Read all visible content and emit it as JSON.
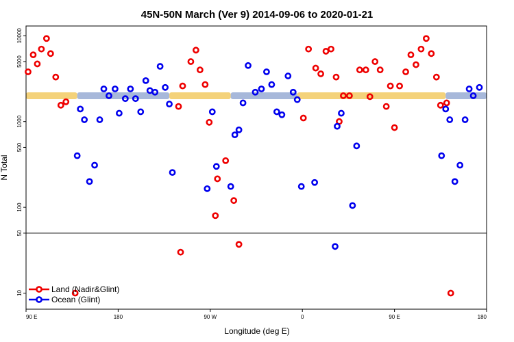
{
  "chart_data": {
    "type": "scatter",
    "title": "45N-50N March (Ver 9)   2014-09-06 to 2020-01-21",
    "xlabel": "Longitude (deg E)",
    "ylabel": "N Total",
    "x_ticks": [
      {
        "value": 90,
        "label": "90 E"
      },
      {
        "value": 180,
        "label": "180"
      },
      {
        "value": 270,
        "label": "90 W"
      },
      {
        "value": 360,
        "label": "0"
      },
      {
        "value": 450,
        "label": "90 E"
      },
      {
        "value": 540,
        "label": "180"
      }
    ],
    "y_ticks": [
      10,
      50,
      100,
      500,
      1000,
      5000,
      10000
    ],
    "xlim": [
      90,
      540
    ],
    "ylim": [
      6.5,
      13000
    ],
    "y_scale": "log",
    "reference_line_y": 50,
    "grid": false,
    "legend_position": "bottom-left",
    "series": [
      {
        "name": "Land (Nadir&Glint)",
        "color": "#ee0000",
        "points": [
          [
            92,
            3800
          ],
          [
            97,
            6000
          ],
          [
            101,
            4700
          ],
          [
            105,
            7000
          ],
          [
            110,
            9300
          ],
          [
            114,
            6200
          ],
          [
            119,
            3300
          ],
          [
            124,
            1550
          ],
          [
            129,
            1700
          ],
          [
            138,
            10
          ],
          [
            239,
            1500
          ],
          [
            241,
            30
          ],
          [
            243,
            2600
          ],
          [
            251,
            5000
          ],
          [
            256,
            6800
          ],
          [
            260,
            4000
          ],
          [
            265,
            2700
          ],
          [
            269,
            980
          ],
          [
            275,
            80
          ],
          [
            277,
            215
          ],
          [
            285,
            350
          ],
          [
            293,
            120
          ],
          [
            298,
            37
          ],
          [
            361,
            1100
          ],
          [
            366,
            7000
          ],
          [
            373,
            4200
          ],
          [
            378,
            3600
          ],
          [
            383,
            6600
          ],
          [
            388,
            7000
          ],
          [
            393,
            3300
          ],
          [
            396,
            1000
          ],
          [
            400,
            2000
          ],
          [
            406,
            2000
          ],
          [
            416,
            4000
          ],
          [
            422,
            4000
          ],
          [
            426,
            1950
          ],
          [
            431,
            5000
          ],
          [
            436,
            4000
          ],
          [
            442,
            1500
          ],
          [
            446,
            2600
          ],
          [
            450,
            850
          ],
          [
            455,
            2600
          ],
          [
            461,
            3800
          ],
          [
            466,
            6000
          ],
          [
            471,
            4600
          ],
          [
            476,
            7000
          ],
          [
            481,
            9300
          ],
          [
            486,
            6200
          ],
          [
            491,
            3300
          ],
          [
            495,
            1550
          ],
          [
            501,
            1650
          ],
          [
            505,
            10
          ]
        ]
      },
      {
        "name": "Ocean (Glint)",
        "color": "#0000ee",
        "points": [
          [
            140,
            400
          ],
          [
            143,
            1400
          ],
          [
            147,
            1050
          ],
          [
            152,
            200
          ],
          [
            157,
            310
          ],
          [
            162,
            1050
          ],
          [
            166,
            2400
          ],
          [
            171,
            2000
          ],
          [
            177,
            2400
          ],
          [
            181,
            1250
          ],
          [
            187,
            1850
          ],
          [
            192,
            2400
          ],
          [
            197,
            1850
          ],
          [
            202,
            1300
          ],
          [
            207,
            3000
          ],
          [
            211,
            2300
          ],
          [
            216,
            2200
          ],
          [
            221,
            4400
          ],
          [
            226,
            2500
          ],
          [
            230,
            1600
          ],
          [
            233,
            255
          ],
          [
            267,
            165
          ],
          [
            272,
            1300
          ],
          [
            276,
            300
          ],
          [
            290,
            175
          ],
          [
            294,
            700
          ],
          [
            298,
            800
          ],
          [
            302,
            1650
          ],
          [
            307,
            4500
          ],
          [
            314,
            2200
          ],
          [
            320,
            2400
          ],
          [
            325,
            3800
          ],
          [
            330,
            2700
          ],
          [
            335,
            1300
          ],
          [
            340,
            1200
          ],
          [
            346,
            3400
          ],
          [
            351,
            2200
          ],
          [
            355,
            1800
          ],
          [
            359,
            175
          ],
          [
            372,
            195
          ],
          [
            392,
            35
          ],
          [
            394,
            880
          ],
          [
            398,
            1250
          ],
          [
            409,
            105
          ],
          [
            413,
            520
          ],
          [
            496,
            400
          ],
          [
            500,
            1400
          ],
          [
            504,
            1050
          ],
          [
            509,
            200
          ],
          [
            514,
            310
          ],
          [
            519,
            1050
          ],
          [
            523,
            2400
          ],
          [
            527,
            2000
          ],
          [
            533,
            2500
          ]
        ]
      }
    ],
    "dense_band": {
      "y_value": 2000,
      "segments": [
        {
          "series": "Land (Nadir&Glint)",
          "from": 90,
          "to": 140
        },
        {
          "series": "Ocean (Glint)",
          "from": 140,
          "to": 230
        },
        {
          "series": "Land (Nadir&Glint)",
          "from": 230,
          "to": 290
        },
        {
          "series": "Ocean (Glint)",
          "from": 290,
          "to": 355
        },
        {
          "series": "Land (Nadir&Glint)",
          "from": 355,
          "to": 500
        },
        {
          "series": "Ocean (Glint)",
          "from": 500,
          "to": 540
        }
      ],
      "colors": {
        "Land (Nadir&Glint)": "#f4d27a",
        "Ocean (Glint)": "#a7b8da"
      }
    }
  }
}
